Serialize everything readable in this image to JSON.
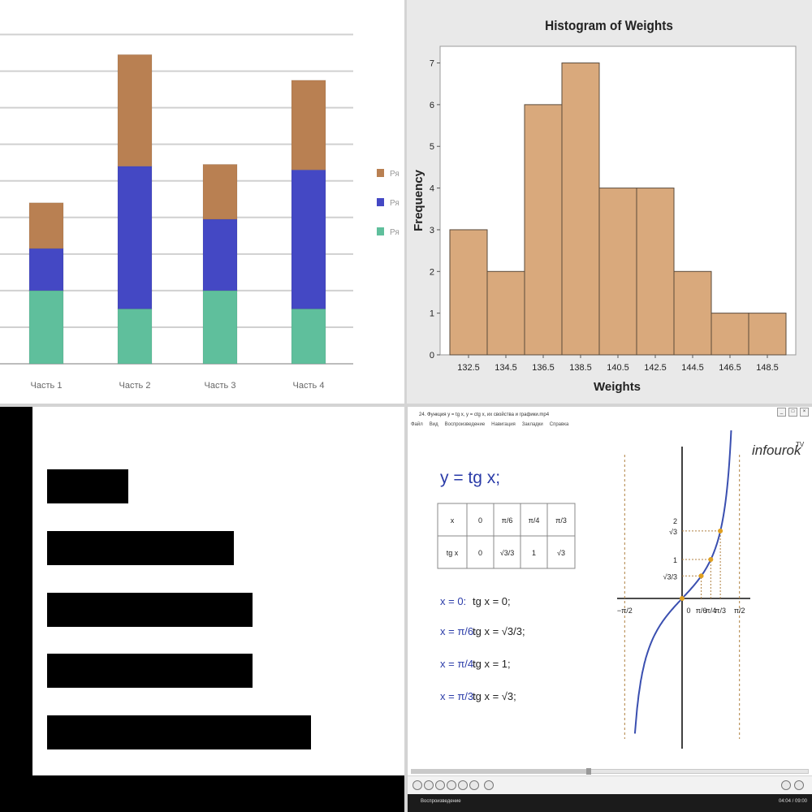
{
  "colors": {
    "stack_bottom": "#5fbf9c",
    "stack_middle": "#4448c4",
    "stack_top": "#b98052",
    "hist_fill": "#d9a97c",
    "hbar": "#000000",
    "curve": "#3a4fb0",
    "point": "#e0a020",
    "math_blue": "#2a3ba8"
  },
  "chart_data": [
    {
      "type": "bar",
      "stacked": true,
      "categories": [
        "Часть 1",
        "Часть 2",
        "Часть 3",
        "Часть 4"
      ],
      "series": [
        {
          "name": "Ря",
          "values": [
            2.0,
            1.5,
            2.0,
            1.5
          ]
        },
        {
          "name": "Ря",
          "values": [
            1.15,
            3.9,
            1.95,
            3.8
          ]
        },
        {
          "name": "Ря",
          "values": [
            1.25,
            3.05,
            1.5,
            2.45
          ]
        }
      ],
      "ylim": [
        0,
        9.5
      ],
      "grid": true,
      "legend": "right"
    },
    {
      "type": "bar",
      "title": "Histogram of Weights",
      "xlabel": "Weights",
      "ylabel": "Frequency",
      "categories": [
        "132.5",
        "134.5",
        "136.5",
        "138.5",
        "140.5",
        "142.5",
        "144.5",
        "146.5",
        "148.5"
      ],
      "values": [
        3,
        2,
        6,
        7,
        4,
        4,
        2,
        1,
        1
      ],
      "ylim": [
        0,
        7.4
      ],
      "yticks": [
        "0",
        "1",
        "2",
        "3",
        "4",
        "5",
        "6",
        "7"
      ],
      "grid": false
    },
    {
      "type": "bar",
      "orientation": "horizontal",
      "categories": [
        "",
        "",
        "",
        "",
        ""
      ],
      "values": [
        1,
        2.3,
        2.53,
        2.53,
        3.25
      ],
      "grid": false
    },
    {
      "type": "line",
      "title": "y = tg x;",
      "x_ticks": [
        "−π/2",
        "0",
        "π/6",
        "π/4",
        "π/3",
        "π/2"
      ],
      "y_ticks": [
        "√3/3",
        "1",
        "√3",
        "2"
      ],
      "points": [
        {
          "x": 0,
          "y": 0
        },
        {
          "x": 0.5236,
          "y": 0.5774
        },
        {
          "x": 0.7854,
          "y": 1
        },
        {
          "x": 1.0472,
          "y": 1.7321
        }
      ],
      "asymptotes": [
        "−π/2",
        "π/2"
      ]
    }
  ],
  "player": {
    "title": "24. Функция y = tg x, y = ctg x, их свойства и графики.mp4",
    "menu": [
      "Файл",
      "Вид",
      "Воспроизведение",
      "Навигация",
      "Закладки",
      "Справка"
    ],
    "status_left": "Воспроизведение",
    "status_right": "04:04 / 09:00",
    "progress": 0.44,
    "brand": "infourok",
    "brand_sup": "TV",
    "function_title": "y = tg x;",
    "table": {
      "row1": [
        "x",
        "0",
        "π/6",
        "π/4",
        "π/3"
      ],
      "row2": [
        "tg x",
        "0",
        "√3/3",
        "1",
        "√3"
      ]
    },
    "equations": [
      {
        "lhs": "x = 0:",
        "rhs": "tg x = 0;"
      },
      {
        "lhs": "x = π/6:",
        "rhs": "tg x = √3/3;"
      },
      {
        "lhs": "x = π/4:",
        "rhs": "tg x = 1;"
      },
      {
        "lhs": "x = π/3:",
        "rhs": "tg x = √3;"
      }
    ]
  }
}
